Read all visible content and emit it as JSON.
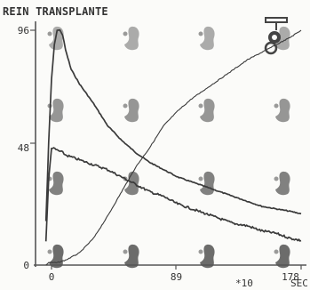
{
  "header": {
    "title": "REIN TRANSPLANTE"
  },
  "colors": {
    "curve": "#3a3a3a",
    "axis": "#555555",
    "thumb": "#4a4a4a",
    "background": "#fbfbf9"
  },
  "icons": {
    "marker": "roi-marker-icon"
  },
  "thumbnails": {
    "rows": 4,
    "cols": 4
  },
  "chart_data": {
    "type": "line",
    "title": "REIN TRANSPLANTE",
    "xlabel": "",
    "ylabel": "",
    "frame_label": "*10",
    "x_unit": "SEC",
    "xlim": [
      0,
      178
    ],
    "ylim": [
      0,
      96
    ],
    "y_ticks": [
      "0",
      "48",
      "96"
    ],
    "x_ticks": [
      "0",
      "89",
      "178"
    ],
    "grid": false,
    "legend": "none",
    "series": [
      {
        "x": [
          -4,
          -2,
          0,
          2,
          4,
          6,
          8,
          10,
          14,
          20,
          30,
          40,
          50,
          60,
          70,
          80,
          90,
          100,
          110,
          120,
          130,
          140,
          150,
          160,
          170,
          178
        ],
        "y": [
          18,
          50,
          76,
          90,
          96,
          96,
          94,
          88,
          80,
          74,
          66,
          57,
          51,
          46,
          42,
          39,
          36,
          34,
          32,
          30,
          28,
          26,
          24,
          23,
          22,
          21
        ]
      },
      {
        "x": [
          -4,
          -2,
          0,
          4,
          8,
          10,
          20,
          30,
          40,
          50,
          60,
          70,
          80,
          90,
          100,
          110,
          120,
          130,
          140,
          150,
          160,
          170,
          178
        ],
        "y": [
          10,
          35,
          48,
          47,
          46,
          45,
          43,
          41,
          39,
          36,
          33,
          30,
          28,
          25,
          23,
          21,
          19,
          17,
          16,
          14,
          13,
          11,
          10
        ]
      },
      {
        "x": [
          -4,
          -2,
          0,
          4,
          10,
          20,
          30,
          40,
          50,
          60,
          70,
          80,
          90,
          100,
          110,
          120,
          130,
          140,
          150,
          160,
          170,
          178
        ],
        "y": [
          0,
          1,
          1,
          1,
          2,
          5,
          11,
          20,
          30,
          40,
          48,
          57,
          63,
          68,
          72,
          76,
          80,
          84,
          87,
          90,
          93,
          96
        ]
      }
    ]
  }
}
